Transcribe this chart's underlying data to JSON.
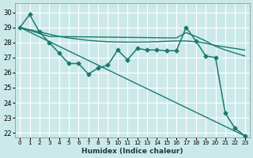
{
  "xlabel": "Humidex (Indice chaleur)",
  "bg_color": "#cce9e9",
  "grid_color": "#ffffff",
  "line_color": "#1a7a6e",
  "xlim": [
    -0.5,
    23.5
  ],
  "ylim": [
    21.7,
    30.6
  ],
  "yticks": [
    22,
    23,
    24,
    25,
    26,
    27,
    28,
    29,
    30
  ],
  "xticks": [
    0,
    1,
    2,
    3,
    4,
    5,
    6,
    7,
    8,
    9,
    10,
    11,
    12,
    13,
    14,
    15,
    16,
    17,
    18,
    19,
    20,
    21,
    22,
    23
  ],
  "series1_x": [
    0,
    1,
    2,
    3,
    4,
    5,
    6,
    7,
    8,
    9,
    10,
    11,
    12,
    13,
    14,
    15,
    16,
    17,
    18,
    19,
    20,
    21,
    22,
    23
  ],
  "series1_y": [
    29.0,
    29.85,
    28.7,
    28.0,
    27.3,
    26.6,
    26.6,
    25.9,
    26.3,
    26.5,
    27.5,
    26.85,
    27.6,
    27.5,
    27.5,
    27.45,
    27.45,
    29.0,
    28.1,
    27.1,
    27.0,
    23.3,
    22.3,
    21.8
  ],
  "series2_x": [
    0,
    23
  ],
  "series2_y": [
    29.0,
    21.8
  ],
  "series3_x": [
    0,
    1,
    2,
    3,
    4,
    5,
    6,
    7,
    8,
    9,
    10,
    11,
    12,
    13,
    14,
    15,
    16,
    17,
    18,
    19,
    20,
    21,
    22,
    23
  ],
  "series3_y": [
    29.0,
    28.85,
    28.7,
    28.55,
    28.4,
    28.3,
    28.22,
    28.14,
    28.09,
    28.05,
    28.03,
    28.02,
    28.02,
    28.03,
    28.05,
    28.08,
    28.1,
    28.1,
    28.05,
    27.95,
    27.8,
    27.7,
    27.6,
    27.5
  ],
  "series4_x": [
    0,
    1,
    2,
    3,
    16,
    17,
    18,
    19,
    20,
    21,
    22,
    23
  ],
  "series4_y": [
    29.0,
    28.8,
    28.6,
    28.4,
    28.3,
    28.65,
    28.4,
    28.1,
    27.75,
    27.5,
    27.3,
    27.1
  ]
}
